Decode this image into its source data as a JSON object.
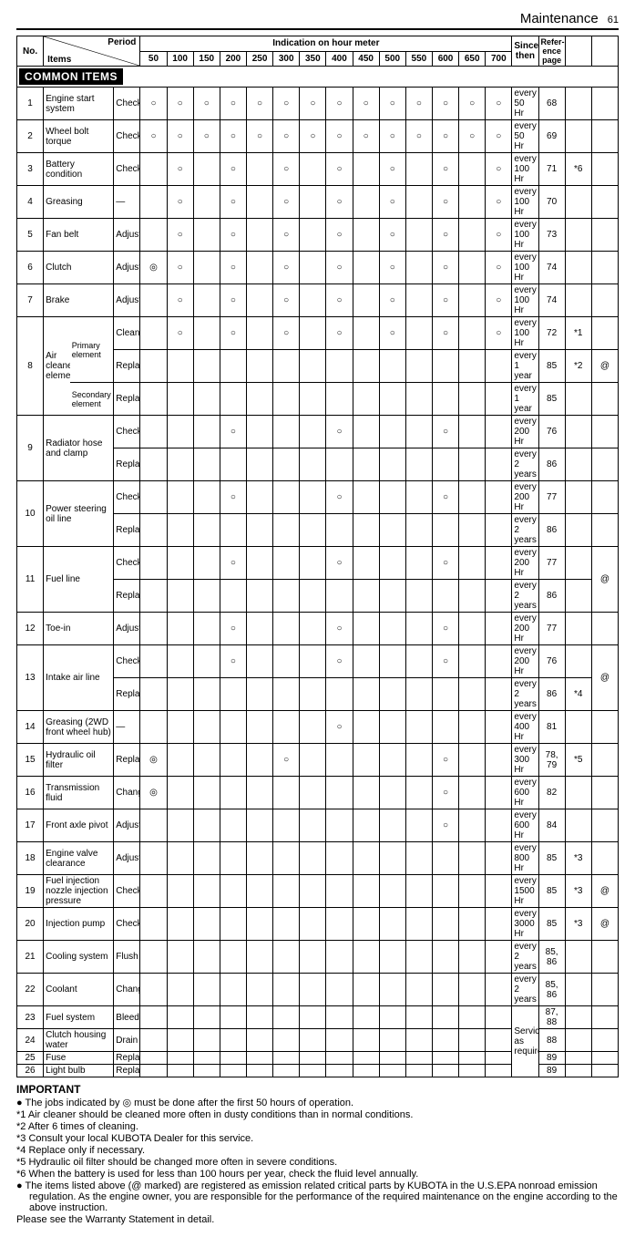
{
  "header": {
    "title": "Maintenance",
    "page": "61"
  },
  "table_header": {
    "no": "No.",
    "period": "Period",
    "items": "Items",
    "indication": "Indication on hour meter",
    "hours": [
      "50",
      "100",
      "150",
      "200",
      "250",
      "300",
      "350",
      "400",
      "450",
      "500",
      "550",
      "600",
      "650",
      "700"
    ],
    "since": "Since then",
    "ref": "Refer-\nence\npage"
  },
  "section": "COMMON ITEMS",
  "marks": {
    "circle": "○",
    "dcircle": "◎"
  },
  "rows": [
    {
      "n": "1",
      "item": "Engine start system",
      "action": "Check",
      "m": [
        "c",
        "c",
        "c",
        "c",
        "c",
        "c",
        "c",
        "c",
        "c",
        "c",
        "c",
        "c",
        "c",
        "c"
      ],
      "since": "every 50 Hr",
      "ref": "68",
      "nt1": "",
      "nt2": ""
    },
    {
      "n": "2",
      "item": "Wheel bolt torque",
      "action": "Check",
      "m": [
        "c",
        "c",
        "c",
        "c",
        "c",
        "c",
        "c",
        "c",
        "c",
        "c",
        "c",
        "c",
        "c",
        "c"
      ],
      "since": "every 50 Hr",
      "ref": "69",
      "nt1": "",
      "nt2": ""
    },
    {
      "n": "3",
      "item": "Battery condition",
      "action": "Check",
      "m": [
        "",
        "c",
        "",
        "c",
        "",
        "c",
        "",
        "c",
        "",
        "c",
        "",
        "c",
        "",
        "c"
      ],
      "since": "every 100 Hr",
      "ref": "71",
      "nt1": "*6",
      "nt2": ""
    },
    {
      "n": "4",
      "item": "Greasing",
      "action": "—",
      "m": [
        "",
        "c",
        "",
        "c",
        "",
        "c",
        "",
        "c",
        "",
        "c",
        "",
        "c",
        "",
        "c"
      ],
      "since": "every 100 Hr",
      "ref": "70",
      "nt1": "",
      "nt2": ""
    },
    {
      "n": "5",
      "item": "Fan belt",
      "action": "Adjust",
      "m": [
        "",
        "c",
        "",
        "c",
        "",
        "c",
        "",
        "c",
        "",
        "c",
        "",
        "c",
        "",
        "c"
      ],
      "since": "every 100 Hr",
      "ref": "73",
      "nt1": "",
      "nt2": ""
    },
    {
      "n": "6",
      "item": "Clutch",
      "action": "Adjust",
      "m": [
        "d",
        "c",
        "",
        "c",
        "",
        "c",
        "",
        "c",
        "",
        "c",
        "",
        "c",
        "",
        "c"
      ],
      "since": "every 100 Hr",
      "ref": "74",
      "nt1": "",
      "nt2": ""
    },
    {
      "n": "7",
      "item": "Brake",
      "action": "Adjust",
      "m": [
        "",
        "c",
        "",
        "c",
        "",
        "c",
        "",
        "c",
        "",
        "c",
        "",
        "c",
        "",
        "c"
      ],
      "since": "every 100 Hr",
      "ref": "74",
      "nt1": "",
      "nt2": ""
    },
    {
      "n": "8",
      "item_group": "Air cleaner element [Double type]",
      "sub": [
        {
          "sub1": "Primary element",
          "action": "Clean",
          "m": [
            "",
            "c",
            "",
            "c",
            "",
            "c",
            "",
            "c",
            "",
            "c",
            "",
            "c",
            "",
            "c"
          ],
          "since": "every 100 Hr",
          "ref": "72",
          "nt1": "*1",
          "nt2": ""
        },
        {
          "sub1": "",
          "action": "Replace",
          "m": [
            "",
            "",
            "",
            "",
            "",
            "",
            "",
            "",
            "",
            "",
            "",
            "",
            "",
            ""
          ],
          "since": "every 1 year",
          "ref": "85",
          "nt1": "*2",
          "nt2": "@"
        },
        {
          "sub1": "Secondary element",
          "action": "Replace",
          "m": [
            "",
            "",
            "",
            "",
            "",
            "",
            "",
            "",
            "",
            "",
            "",
            "",
            "",
            ""
          ],
          "since": "every 1 year",
          "ref": "85",
          "nt1": "",
          "nt2": ""
        }
      ]
    },
    {
      "n": "9",
      "item": "Radiator hose and clamp",
      "sub": [
        {
          "action": "Check",
          "m": [
            "",
            "",
            "",
            "c",
            "",
            "",
            "",
            "c",
            "",
            "",
            "",
            "c",
            "",
            ""
          ],
          "since": "every 200 Hr",
          "ref": "76",
          "nt1": "",
          "nt2": ""
        },
        {
          "action": "Replace",
          "m": [
            "",
            "",
            "",
            "",
            "",
            "",
            "",
            "",
            "",
            "",
            "",
            "",
            "",
            ""
          ],
          "since": "every 2 years",
          "ref": "86",
          "nt1": "",
          "nt2": ""
        }
      ]
    },
    {
      "n": "10",
      "item": "Power steering oil line",
      "sub": [
        {
          "action": "Check",
          "m": [
            "",
            "",
            "",
            "c",
            "",
            "",
            "",
            "c",
            "",
            "",
            "",
            "c",
            "",
            ""
          ],
          "since": "every 200 Hr",
          "ref": "77",
          "nt1": "",
          "nt2": ""
        },
        {
          "action": "Replace",
          "m": [
            "",
            "",
            "",
            "",
            "",
            "",
            "",
            "",
            "",
            "",
            "",
            "",
            "",
            ""
          ],
          "since": "every 2 years",
          "ref": "86",
          "nt1": "",
          "nt2": ""
        }
      ]
    },
    {
      "n": "11",
      "item": "Fuel line",
      "sub": [
        {
          "action": "Check",
          "m": [
            "",
            "",
            "",
            "c",
            "",
            "",
            "",
            "c",
            "",
            "",
            "",
            "c",
            "",
            ""
          ],
          "since": "every 200 Hr",
          "ref": "77",
          "nt1": "",
          "nt2": "@"
        },
        {
          "action": "Replace",
          "m": [
            "",
            "",
            "",
            "",
            "",
            "",
            "",
            "",
            "",
            "",
            "",
            "",
            "",
            ""
          ],
          "since": "every 2 years",
          "ref": "86",
          "nt1": "",
          "nt2": ""
        }
      ]
    },
    {
      "n": "12",
      "item": "Toe-in",
      "action": "Adjust",
      "m": [
        "",
        "",
        "",
        "c",
        "",
        "",
        "",
        "c",
        "",
        "",
        "",
        "c",
        "",
        ""
      ],
      "since": "every 200 Hr",
      "ref": "77",
      "nt1": "",
      "nt2": ""
    },
    {
      "n": "13",
      "item": "Intake air line",
      "sub": [
        {
          "action": "Check",
          "m": [
            "",
            "",
            "",
            "c",
            "",
            "",
            "",
            "c",
            "",
            "",
            "",
            "c",
            "",
            ""
          ],
          "since": "every 200 Hr",
          "ref": "76",
          "nt1": "",
          "nt2": "@"
        },
        {
          "action": "Replace",
          "m": [
            "",
            "",
            "",
            "",
            "",
            "",
            "",
            "",
            "",
            "",
            "",
            "",
            "",
            ""
          ],
          "since": "every 2 years",
          "ref": "86",
          "nt1": "*4",
          "nt2": ""
        }
      ]
    },
    {
      "n": "14",
      "item": "Greasing (2WD front wheel hub)",
      "action": "—",
      "m": [
        "",
        "",
        "",
        "",
        "",
        "",
        "",
        "c",
        "",
        "",
        "",
        "",
        "",
        ""
      ],
      "since": "every 400 Hr",
      "ref": "81",
      "nt1": "",
      "nt2": ""
    },
    {
      "n": "15",
      "item": "Hydraulic oil filter",
      "action": "Replace",
      "m": [
        "d",
        "",
        "",
        "",
        "",
        "c",
        "",
        "",
        "",
        "",
        "",
        "c",
        "",
        ""
      ],
      "since": "every 300 Hr",
      "ref": "78, 79",
      "nt1": "*5",
      "nt2": ""
    },
    {
      "n": "16",
      "item": "Transmission fluid",
      "action": "Change",
      "m": [
        "d",
        "",
        "",
        "",
        "",
        "",
        "",
        "",
        "",
        "",
        "",
        "c",
        "",
        ""
      ],
      "since": "every 600 Hr",
      "ref": "82",
      "nt1": "",
      "nt2": ""
    },
    {
      "n": "17",
      "item": "Front axle pivot",
      "action": "Adjust",
      "m": [
        "",
        "",
        "",
        "",
        "",
        "",
        "",
        "",
        "",
        "",
        "",
        "c",
        "",
        ""
      ],
      "since": "every 600 Hr",
      "ref": "84",
      "nt1": "",
      "nt2": ""
    },
    {
      "n": "18",
      "item": "Engine valve clearance",
      "action": "Adjust",
      "m": [
        "",
        "",
        "",
        "",
        "",
        "",
        "",
        "",
        "",
        "",
        "",
        "",
        "",
        ""
      ],
      "since": "every 800 Hr",
      "ref": "85",
      "nt1": "*3",
      "nt2": ""
    },
    {
      "n": "19",
      "item": "Fuel injection nozzle injection pressure",
      "action": "Check",
      "m": [
        "",
        "",
        "",
        "",
        "",
        "",
        "",
        "",
        "",
        "",
        "",
        "",
        "",
        ""
      ],
      "since": "every 1500 Hr",
      "ref": "85",
      "nt1": "*3",
      "nt2": "@"
    },
    {
      "n": "20",
      "item": "Injection pump",
      "action": "Check",
      "m": [
        "",
        "",
        "",
        "",
        "",
        "",
        "",
        "",
        "",
        "",
        "",
        "",
        "",
        ""
      ],
      "since": "every 3000 Hr",
      "ref": "85",
      "nt1": "*3",
      "nt2": "@"
    },
    {
      "n": "21",
      "item": "Cooling system",
      "action": "Flush",
      "m": [
        "",
        "",
        "",
        "",
        "",
        "",
        "",
        "",
        "",
        "",
        "",
        "",
        "",
        ""
      ],
      "since": "every 2 years",
      "ref": "85, 86",
      "nt1": "",
      "nt2": ""
    },
    {
      "n": "22",
      "item": "Coolant",
      "action": "Change",
      "m": [
        "",
        "",
        "",
        "",
        "",
        "",
        "",
        "",
        "",
        "",
        "",
        "",
        "",
        ""
      ],
      "since": "every 2 years",
      "ref": "85, 86",
      "nt1": "",
      "nt2": ""
    },
    {
      "n": "23",
      "item": "Fuel system",
      "action": "Bleed",
      "m": [
        "",
        "",
        "",
        "",
        "",
        "",
        "",
        "",
        "",
        "",
        "",
        "",
        "",
        ""
      ],
      "since_group": "Service as required",
      "ref": "87, 88",
      "nt1": "",
      "nt2": ""
    },
    {
      "n": "24",
      "item": "Clutch housing water",
      "action": "Drain",
      "m": [
        "",
        "",
        "",
        "",
        "",
        "",
        "",
        "",
        "",
        "",
        "",
        "",
        "",
        ""
      ],
      "ref": "88",
      "nt1": "",
      "nt2": ""
    },
    {
      "n": "25",
      "item": "Fuse",
      "action": "Replace",
      "m": [
        "",
        "",
        "",
        "",
        "",
        "",
        "",
        "",
        "",
        "",
        "",
        "",
        "",
        ""
      ],
      "ref": "89",
      "nt1": "",
      "nt2": ""
    },
    {
      "n": "26",
      "item": "Light bulb",
      "action": "Replace",
      "m": [
        "",
        "",
        "",
        "",
        "",
        "",
        "",
        "",
        "",
        "",
        "",
        "",
        "",
        ""
      ],
      "ref": "89",
      "nt1": "",
      "nt2": ""
    }
  ],
  "notes": {
    "important": "IMPORTANT",
    "lines": [
      "● The jobs indicated by ◎ must be done after the first 50 hours of operation.",
      "*1 Air cleaner should be cleaned more often in dusty conditions than in normal conditions.",
      "*2 After 6 times of cleaning.",
      "*3 Consult your local KUBOTA Dealer for this service.",
      "*4 Replace only if necessary.",
      "*5 Hydraulic oil filter should be changed more often in severe conditions.",
      "*6 When the battery is used for less than 100 hours per year, check the fluid level annually.",
      "● The items listed above (@ marked) are registered as emission related critical parts by KUBOTA in the U.S.EPA nonroad emission regulation. As the engine owner, you are responsible for the performance of the required maintenance on the engine according to the above instruction.",
      "   Please see the Warranty Statement in detail."
    ]
  }
}
